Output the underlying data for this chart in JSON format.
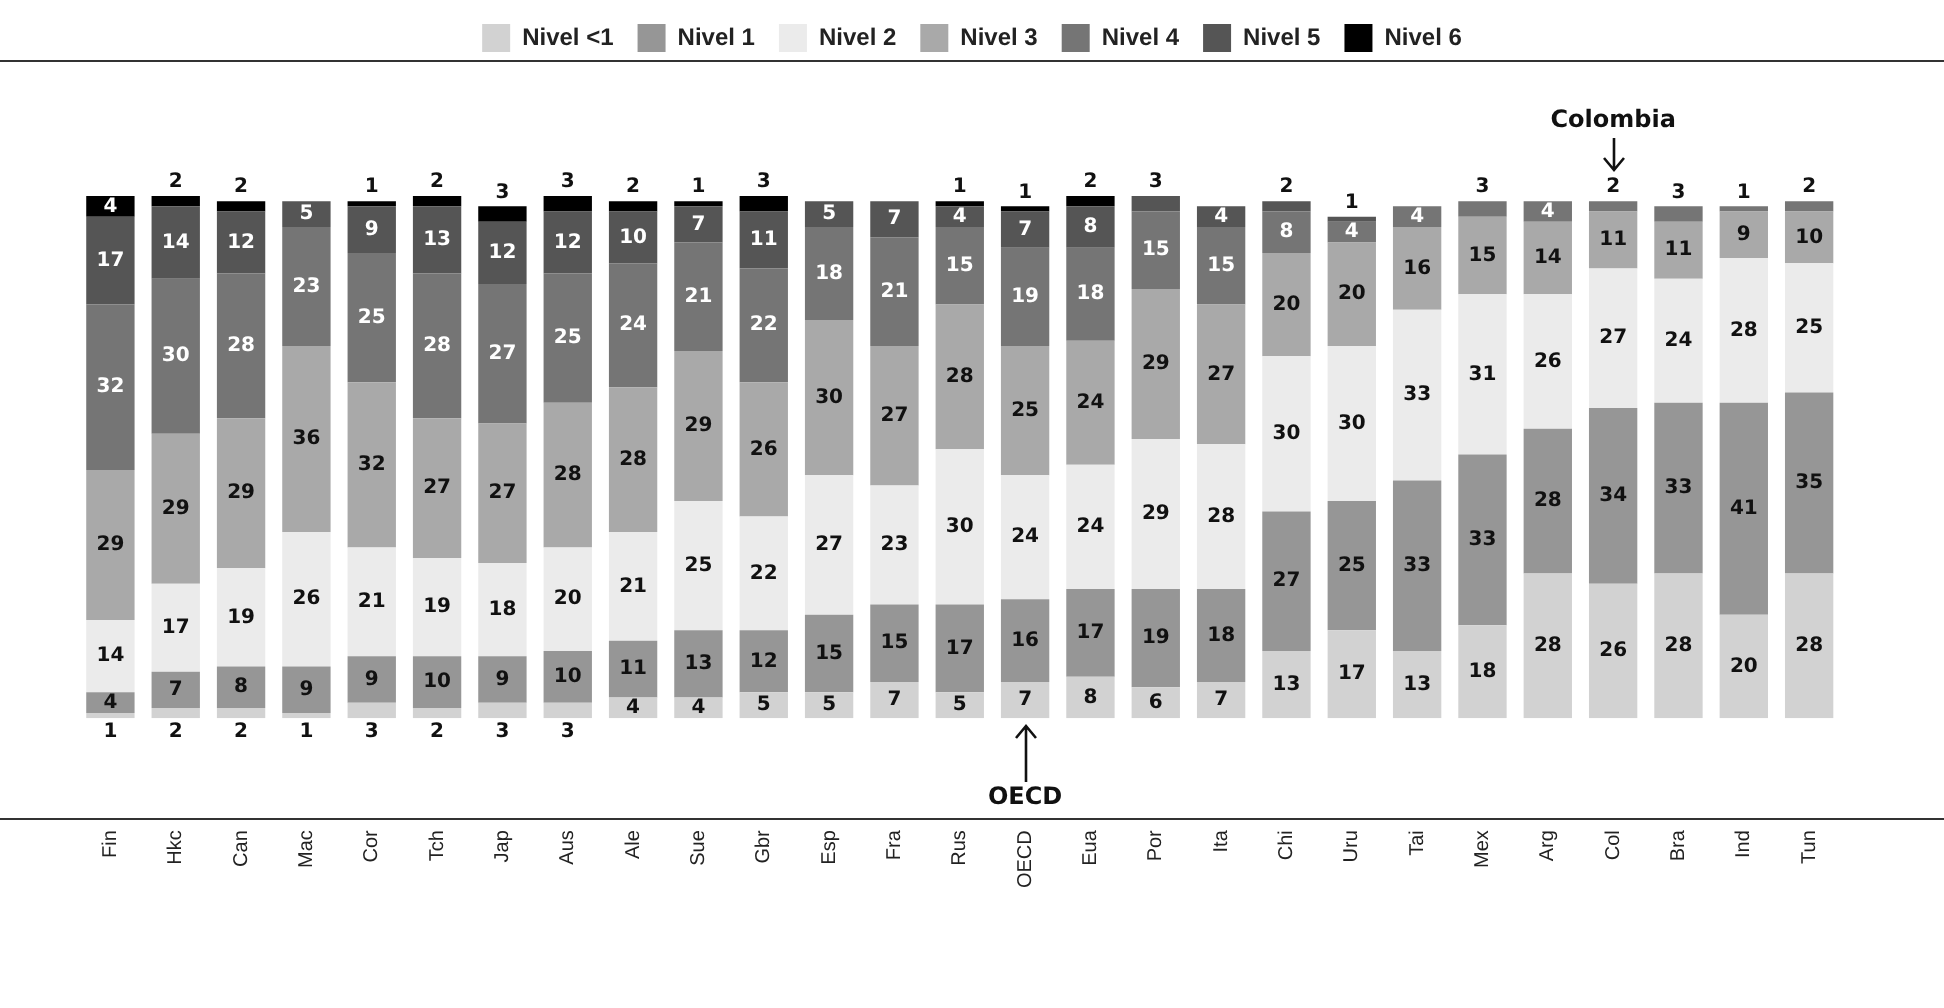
{
  "chart_data": {
    "type": "bar",
    "stacked": true,
    "data_labels": true,
    "tick_labels": "x",
    "legend": "top",
    "grid": false,
    "categories": [
      "Fin",
      "Hkc",
      "Can",
      "Mac",
      "Cor",
      "Tch",
      "Jap",
      "Aus",
      "Ale",
      "Sue",
      "Gbr",
      "Esp",
      "Fra",
      "Rus",
      "OECD",
      "Eua",
      "Por",
      "Ita",
      "Chi",
      "Uru",
      "Tai",
      "Mex",
      "Arg",
      "Col",
      "Bra",
      "Ind",
      "Tun"
    ],
    "series": [
      {
        "name": "Nivel <1",
        "color": "#d2d2d2",
        "values": [
          1,
          2,
          2,
          1,
          3,
          2,
          3,
          3,
          4,
          4,
          5,
          5,
          7,
          5,
          7,
          8,
          6,
          7,
          13,
          17,
          13,
          18,
          28,
          26,
          28,
          20,
          28
        ]
      },
      {
        "name": "Nivel 1",
        "color": "#969696",
        "values": [
          4,
          7,
          8,
          9,
          9,
          10,
          9,
          10,
          11,
          13,
          12,
          15,
          15,
          17,
          16,
          17,
          19,
          18,
          27,
          25,
          33,
          33,
          28,
          34,
          33,
          41,
          35
        ]
      },
      {
        "name": "Nivel 2",
        "color": "#ebebeb",
        "values": [
          14,
          17,
          19,
          26,
          21,
          19,
          18,
          20,
          21,
          25,
          22,
          27,
          23,
          30,
          24,
          24,
          29,
          28,
          30,
          30,
          33,
          31,
          26,
          27,
          24,
          28,
          25
        ]
      },
      {
        "name": "Nivel 3",
        "color": "#a9a9a9",
        "values": [
          29,
          29,
          29,
          36,
          32,
          27,
          27,
          28,
          28,
          29,
          26,
          30,
          27,
          28,
          25,
          24,
          29,
          27,
          20,
          20,
          16,
          15,
          14,
          11,
          11,
          9,
          10
        ]
      },
      {
        "name": "Nivel 4",
        "color": "#757575",
        "values": [
          32,
          30,
          28,
          23,
          25,
          28,
          27,
          25,
          24,
          21,
          22,
          18,
          21,
          15,
          19,
          18,
          15,
          15,
          8,
          4,
          4,
          3,
          4,
          2,
          3,
          1,
          2
        ]
      },
      {
        "name": "Nivel 5",
        "color": "#555555",
        "values": [
          17,
          14,
          12,
          5,
          9,
          13,
          12,
          12,
          10,
          7,
          11,
          5,
          7,
          4,
          7,
          8,
          3,
          4,
          2,
          1,
          null,
          null,
          null,
          null,
          null,
          null,
          null
        ]
      },
      {
        "name": "Nivel 6",
        "color": "#000000",
        "values": [
          4,
          2,
          2,
          null,
          1,
          2,
          3,
          3,
          2,
          1,
          3,
          null,
          null,
          1,
          1,
          2,
          null,
          null,
          null,
          null,
          null,
          null,
          null,
          null,
          null,
          null,
          null
        ]
      }
    ],
    "annotations": [
      {
        "text": "OECD",
        "x": "OECD",
        "y": 0
      },
      {
        "text": "Colombia",
        "x": "Col",
        "y": 100
      }
    ]
  }
}
